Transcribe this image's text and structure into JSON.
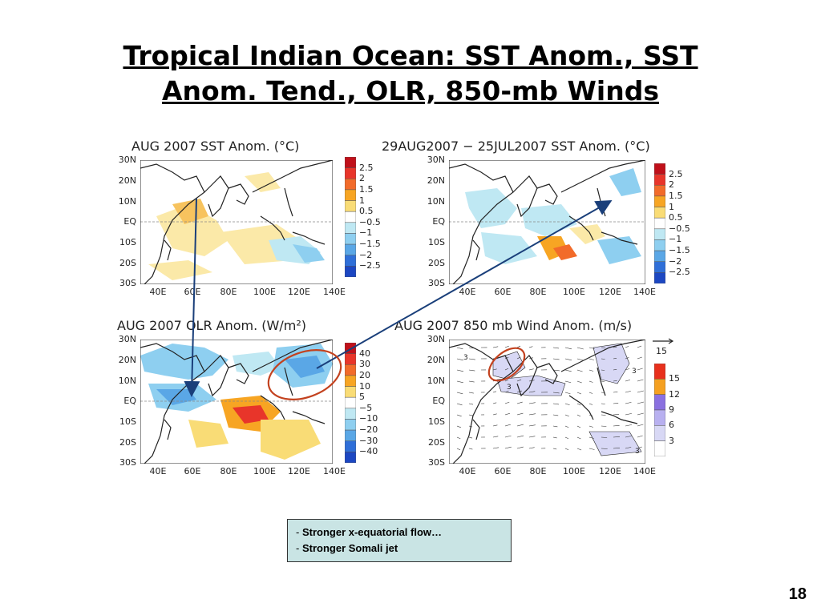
{
  "slide_title_line1": "Tropical  Indian Ocean: SST Anom., SST",
  "slide_title_line2": "Anom. Tend., OLR, 850-mb Winds",
  "panels": {
    "sst": {
      "title": "AUG 2007 SST Anom. (°C)",
      "colorbar_labels": [
        "2.5",
        "2",
        "1.5",
        "1",
        "0.5",
        "−0.5",
        "−1",
        "−1.5",
        "−2",
        "−2.5"
      ]
    },
    "sst_tend": {
      "title": "29AUG2007 − 25JUL2007 SST Anom. (°C)",
      "colorbar_labels": [
        "2.5",
        "2",
        "1.5",
        "1",
        "0.5",
        "−0.5",
        "−1",
        "−1.5",
        "−2",
        "−2.5"
      ]
    },
    "olr": {
      "title": "AUG 2007 OLR Anom. (W/m²)",
      "colorbar_labels": [
        "40",
        "30",
        "20",
        "10",
        "5",
        "−5",
        "−10",
        "−20",
        "−30",
        "−40"
      ]
    },
    "wind": {
      "title": "AUG 2007 850 mb Wind Anom. (m/s)",
      "vector_ref": "15",
      "colorbar_labels": [
        "15",
        "12",
        "9",
        "6",
        "3"
      ],
      "contour_labels": [
        "3",
        "3",
        "3",
        "3"
      ]
    }
  },
  "lat_labels": [
    "30N",
    "20N",
    "10N",
    "EQ",
    "10S",
    "20S",
    "30S"
  ],
  "lon_labels": [
    "40E",
    "60E",
    "80E",
    "100E",
    "120E",
    "140E"
  ],
  "colors": {
    "anom_colors": [
      "#c0101a",
      "#e8352a",
      "#f26b2a",
      "#f7a523",
      "#f9dc76",
      "#ffffff",
      "#bfe8f3",
      "#8ecff0",
      "#5aa7e6",
      "#2f6fd8",
      "#1c47c2"
    ],
    "wind_colors": [
      "#ffffff",
      "#d8d8f5",
      "#b8b0f0",
      "#8a70e0",
      "#f5a020",
      "#e8301c"
    ],
    "arrow": "#1a3f7a",
    "circle": "#c3421f"
  },
  "notes": {
    "line1": "Stronger x-equatorial flow…",
    "line2": "Stronger Somali jet"
  },
  "page_number": "18"
}
